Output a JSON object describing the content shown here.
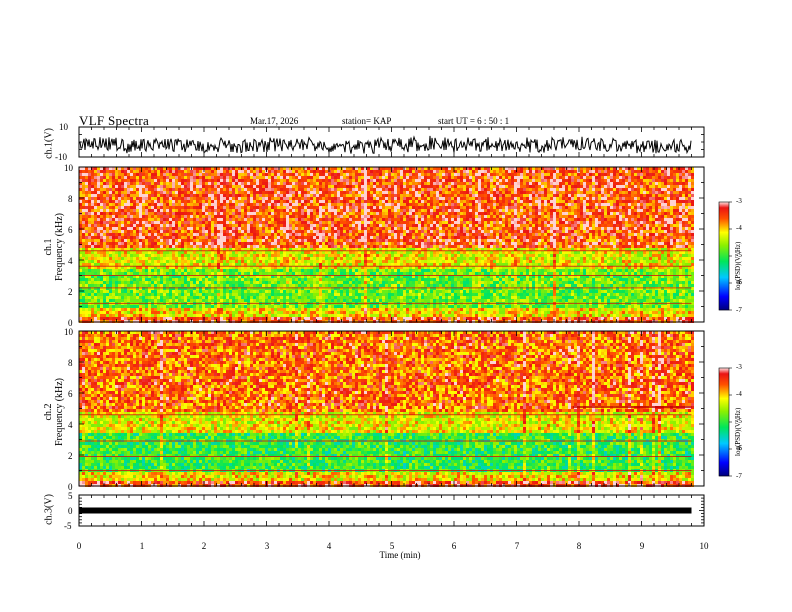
{
  "header": {
    "title": "VLF Spectra",
    "date": "Mar.17, 2026",
    "station": "station= KAP",
    "start": "start  UT  =   6  : 50 : 1"
  },
  "chart_data": [
    {
      "type": "line",
      "name": "ch1-waveform",
      "ylabel": "ch.1(V)",
      "ylim": [
        -10,
        10
      ],
      "yticks": [
        "10",
        "-10"
      ],
      "xlim": [
        0,
        10
      ]
    },
    {
      "type": "heatmap",
      "name": "ch1-spectrogram",
      "ylabel": "ch.1 Frequency (kHz)",
      "ylabel_top": "ch.1",
      "ylabel_bottom": "Frequency (kHz)",
      "ylim": [
        0,
        10
      ],
      "yticks": [
        "0",
        "2",
        "4",
        "6",
        "8",
        "10"
      ],
      "xlim": [
        0,
        10
      ],
      "data_end_min": 9.8,
      "colorbar": {
        "label": "log(PSD)(V²/Hz)",
        "range": [
          -7,
          -3
        ],
        "ticks": [
          "-3",
          "-4",
          "-5",
          "-6",
          "-7"
        ]
      }
    },
    {
      "type": "heatmap",
      "name": "ch2-spectrogram",
      "ylabel": "ch.2 Frequency (kHz)",
      "ylabel_top": "ch.2",
      "ylabel_bottom": "Frequency (kHz)",
      "ylim": [
        0,
        10
      ],
      "yticks": [
        "0",
        "2",
        "4",
        "6",
        "8",
        "10"
      ],
      "xlim": [
        0,
        10
      ],
      "data_end_min": 9.8,
      "colorbar": {
        "label": "log(PSD)(V²/Hz)",
        "range": [
          -7,
          -3
        ],
        "ticks": [
          "-3",
          "-4",
          "-5",
          "-6",
          "-7"
        ]
      }
    },
    {
      "type": "line",
      "name": "ch3-waveform",
      "ylabel": "ch.3(V)",
      "ylim": [
        -5,
        5
      ],
      "yticks": [
        "5",
        "0",
        "-5"
      ],
      "xlim": [
        0,
        10
      ]
    }
  ],
  "xaxis": {
    "label": "Time  (min)",
    "ticks": [
      "0",
      "1",
      "2",
      "3",
      "4",
      "5",
      "6",
      "7",
      "8",
      "9",
      "10"
    ]
  }
}
